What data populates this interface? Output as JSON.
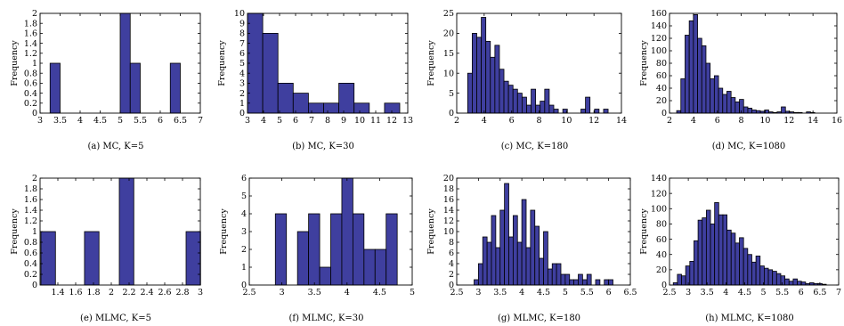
{
  "colors": {
    "bar_fill": "#3F3F9F",
    "bar_edge": "#000000"
  },
  "chart_data": [
    {
      "type": "bar",
      "caption": "(a) MC, K=5",
      "ylabel": "Frequency",
      "xlim": [
        3,
        7
      ],
      "ylim": [
        0,
        2
      ],
      "xticks": [
        "3",
        "3.5",
        "4",
        "4.5",
        "5",
        "5.5",
        "6",
        "6.5",
        "7"
      ],
      "yticks": [
        "0",
        "0.2",
        "0.4",
        "0.6",
        "0.8",
        "1",
        "1.2",
        "1.4",
        "1.6",
        "1.8",
        "2"
      ],
      "bin_width": 0.25,
      "bin_starts": [
        3.25,
        5.0,
        5.25,
        6.25
      ],
      "values": [
        1,
        2,
        1,
        1
      ]
    },
    {
      "type": "bar",
      "caption": "(b) MC, K=30",
      "ylabel": "Frequency",
      "xlim": [
        3,
        13
      ],
      "ylim": [
        0,
        10
      ],
      "xticks": [
        "3",
        "4",
        "5",
        "6",
        "7",
        "8",
        "9",
        "10",
        "11",
        "12",
        "13"
      ],
      "yticks": [
        "0",
        "1",
        "2",
        "3",
        "4",
        "5",
        "6",
        "7",
        "8",
        "9",
        "10"
      ],
      "bin_width": 0.95,
      "bin_starts": [
        3.0,
        3.95,
        4.9,
        5.85,
        6.8,
        7.75,
        8.7,
        9.65,
        10.6,
        11.55
      ],
      "values": [
        10,
        8,
        3,
        2,
        1,
        1,
        3,
        1,
        0,
        1
      ]
    },
    {
      "type": "bar",
      "caption": "(c) MC, K=180",
      "ylabel": "Frequency",
      "xlim": [
        2,
        14
      ],
      "ylim": [
        0,
        25
      ],
      "xticks": [
        "2",
        "4",
        "6",
        "8",
        "10",
        "12",
        "14"
      ],
      "yticks": [
        "0",
        "5",
        "10",
        "15",
        "20",
        "25"
      ],
      "bin_width": 0.33,
      "bin_starts": [
        2.8,
        3.13,
        3.46,
        3.79,
        4.12,
        4.45,
        4.78,
        5.11,
        5.44,
        5.77,
        6.1,
        6.43,
        6.76,
        7.09,
        7.42,
        7.75,
        8.08,
        8.41,
        8.74,
        9.07,
        9.4,
        9.73,
        10.06,
        10.39,
        10.72,
        11.05,
        11.38,
        11.71,
        12.04,
        12.37,
        12.7
      ],
      "values": [
        10,
        20,
        19,
        24,
        18,
        14,
        17,
        11,
        8,
        7,
        6,
        5,
        4,
        2,
        6,
        2,
        3,
        6,
        2,
        1,
        0,
        1,
        0,
        0,
        0,
        1,
        4,
        0,
        1,
        0,
        1
      ]
    },
    {
      "type": "bar",
      "caption": "(d) MC, K=1080",
      "ylabel": "Frequency",
      "xlim": [
        2,
        16
      ],
      "ylim": [
        0,
        160
      ],
      "xticks": [
        "2",
        "4",
        "6",
        "8",
        "10",
        "12",
        "14",
        "16"
      ],
      "yticks": [
        "0",
        "20",
        "40",
        "60",
        "80",
        "100",
        "120",
        "140",
        "160"
      ],
      "bin_width": 0.35,
      "bin_starts": [
        2.6,
        2.95,
        3.3,
        3.65,
        4.0,
        4.35,
        4.7,
        5.05,
        5.4,
        5.75,
        6.1,
        6.45,
        6.8,
        7.15,
        7.5,
        7.85,
        8.2,
        8.55,
        8.9,
        9.25,
        9.6,
        9.95,
        10.3,
        10.65,
        11.0,
        11.35,
        11.7,
        12.05,
        12.4,
        12.75,
        13.1,
        13.45,
        13.8
      ],
      "values": [
        4,
        55,
        125,
        148,
        158,
        120,
        108,
        80,
        55,
        60,
        40,
        30,
        35,
        25,
        18,
        22,
        10,
        8,
        5,
        4,
        3,
        5,
        2,
        1,
        2,
        10,
        3,
        2,
        1,
        1,
        0,
        2,
        1
      ]
    },
    {
      "type": "bar",
      "caption": "(e) MLMC, K=5",
      "ylabel": "Frequency",
      "xlim": [
        1.2,
        3
      ],
      "ylim": [
        0,
        2
      ],
      "xticks": [
        "1.4",
        "1.6",
        "1.8",
        "2",
        "2.2",
        "2.4",
        "2.6",
        "2.8",
        "3"
      ],
      "xtick_vals": [
        1.4,
        1.6,
        1.8,
        2.0,
        2.2,
        2.4,
        2.6,
        2.8,
        3.0
      ],
      "yticks": [
        "0",
        "0.2",
        "0.4",
        "0.6",
        "0.8",
        "1",
        "1.2",
        "1.4",
        "1.6",
        "1.8",
        "2"
      ],
      "bin_width": 0.163,
      "bin_starts": [
        1.21,
        1.699,
        2.09,
        2.84
      ],
      "values": [
        1,
        1,
        2,
        1
      ]
    },
    {
      "type": "bar",
      "caption": "(f) MLMC, K=30",
      "ylabel": "Frequency",
      "xlim": [
        2.5,
        5
      ],
      "ylim": [
        0,
        6
      ],
      "xticks": [
        "2.5",
        "3",
        "3.5",
        "4",
        "4.5",
        "5"
      ],
      "yticks": [
        "0",
        "1",
        "2",
        "3",
        "4",
        "5",
        "6"
      ],
      "bin_width": 0.17,
      "bin_starts": [
        2.9,
        3.07,
        3.24,
        3.41,
        3.58,
        3.75,
        3.92,
        4.09,
        4.26,
        4.43,
        4.6
      ],
      "values": [
        4,
        0,
        3,
        4,
        1,
        4,
        6,
        4,
        2,
        2,
        4
      ]
    },
    {
      "type": "bar",
      "caption": "(g) MLMC, K=180",
      "ylabel": "Frequency",
      "xlim": [
        2.5,
        6.5
      ],
      "ylim": [
        0,
        20
      ],
      "xticks": [
        "2.5",
        "3",
        "3.5",
        "4",
        "4.5",
        "5",
        "5.5",
        "6",
        "6.5"
      ],
      "yticks": [
        "0",
        "2",
        "4",
        "6",
        "8",
        "10",
        "12",
        "14",
        "16",
        "18",
        "20"
      ],
      "bin_width": 0.1,
      "bin_starts": [
        2.9,
        3.0,
        3.1,
        3.2,
        3.3,
        3.4,
        3.5,
        3.6,
        3.7,
        3.8,
        3.9,
        4.0,
        4.1,
        4.2,
        4.3,
        4.4,
        4.5,
        4.6,
        4.7,
        4.8,
        4.9,
        5.0,
        5.1,
        5.2,
        5.3,
        5.4,
        5.5,
        5.6,
        5.7,
        5.8,
        5.9,
        6.0
      ],
      "values": [
        1,
        4,
        9,
        8,
        13,
        7,
        14,
        19,
        9,
        13,
        8,
        16,
        7,
        14,
        11,
        5,
        10,
        3,
        4,
        4,
        2,
        2,
        1,
        1,
        2,
        1,
        2,
        0,
        1,
        0,
        1,
        1
      ]
    },
    {
      "type": "bar",
      "caption": "(h) MLMC, K=1080",
      "ylabel": "Frequency",
      "xlim": [
        2.5,
        7
      ],
      "ylim": [
        0,
        140
      ],
      "xticks": [
        "2.5",
        "3",
        "3.5",
        "4",
        "4.5",
        "5",
        "5.5",
        "6",
        "6.5",
        "7"
      ],
      "yticks": [
        "0",
        "20",
        "40",
        "60",
        "80",
        "100",
        "120",
        "140"
      ],
      "bin_width": 0.11,
      "bin_starts": [
        2.6,
        2.71,
        2.82,
        2.93,
        3.04,
        3.15,
        3.26,
        3.37,
        3.48,
        3.59,
        3.7,
        3.81,
        3.92,
        4.03,
        4.14,
        4.25,
        4.36,
        4.47,
        4.58,
        4.69,
        4.8,
        4.91,
        5.02,
        5.13,
        5.24,
        5.35,
        5.46,
        5.57,
        5.68,
        5.79,
        5.9,
        6.01,
        6.12,
        6.23,
        6.34,
        6.45,
        6.56
      ],
      "values": [
        3,
        14,
        12,
        25,
        31,
        58,
        85,
        88,
        98,
        80,
        108,
        92,
        92,
        72,
        68,
        55,
        62,
        48,
        40,
        30,
        38,
        25,
        22,
        20,
        18,
        15,
        12,
        8,
        5,
        8,
        5,
        4,
        2,
        3,
        2,
        2,
        1
      ]
    }
  ]
}
